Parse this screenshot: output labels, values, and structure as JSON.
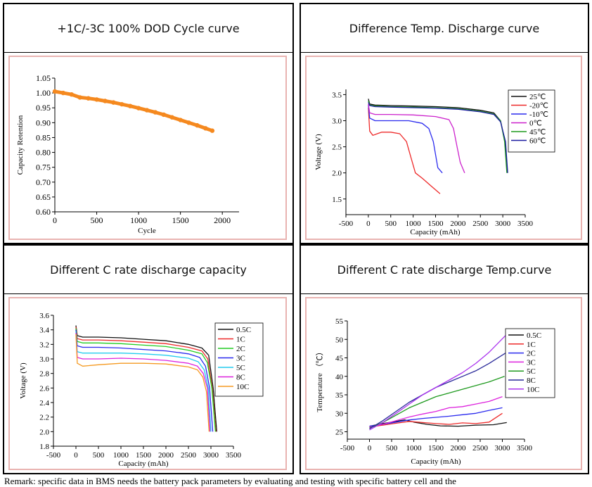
{
  "panels": {
    "cycle": {
      "title": "+1C/-3C 100% DOD Cycle curve"
    },
    "temp_discharge": {
      "title": "Difference Temp. Discharge curve"
    },
    "crate_capacity": {
      "title": "Different C rate discharge capacity"
    },
    "crate_temp": {
      "title": "Different C rate discharge Temp.curve"
    }
  },
  "caption": "Remark: specific data in BMS needs the battery pack parameters by evaluating and testing with specific battery cell and the",
  "chart_data": [
    {
      "id": "cycle",
      "type": "scatter",
      "title": "+1C/-3C 100% DOD Cycle curve",
      "xlabel": "Cycle",
      "ylabel": "Capacity Retention",
      "xlim": [
        0,
        2200
      ],
      "ylim": [
        0.6,
        1.05
      ],
      "xticks": [
        0,
        500,
        1000,
        1500,
        2000
      ],
      "yticks": [
        0.6,
        0.65,
        0.7,
        0.75,
        0.8,
        0.85,
        0.9,
        0.95,
        1.0,
        1.05
      ],
      "ytick_labels": [
        "0.60",
        "0.65",
        "0.70",
        "0.75",
        "0.80",
        "0.85",
        "0.90",
        "0.95",
        "1.00",
        "1.05"
      ],
      "series": [
        {
          "name": "Capacity Retention",
          "color": "#f5891f",
          "x": [
            0,
            100,
            200,
            300,
            400,
            500,
            600,
            700,
            800,
            900,
            1000,
            1100,
            1200,
            1300,
            1400,
            1500,
            1600,
            1700,
            1800,
            1880
          ],
          "y": [
            1.005,
            1.0,
            0.995,
            0.985,
            0.982,
            0.978,
            0.973,
            0.968,
            0.962,
            0.956,
            0.949,
            0.942,
            0.935,
            0.927,
            0.918,
            0.909,
            0.9,
            0.891,
            0.881,
            0.873
          ]
        }
      ]
    },
    {
      "id": "temp_discharge",
      "type": "line",
      "xlabel": "Capacity (mAh)",
      "ylabel": "Voltage (V)",
      "xlim": [
        -500,
        3500
      ],
      "ylim": [
        1.2,
        3.6
      ],
      "xticks": [
        -500,
        0,
        500,
        1000,
        1500,
        2000,
        2500,
        3000,
        3500
      ],
      "yticks": [
        1.5,
        2.0,
        2.5,
        3.0,
        3.5
      ],
      "ytick_labels": [
        "1.5",
        "2.0",
        "2.5",
        "3.0",
        "3.5"
      ],
      "legend": "top-right",
      "series": [
        {
          "name": "25℃",
          "color": "#111111",
          "x": [
            0,
            30,
            150,
            500,
            1000,
            1500,
            2000,
            2500,
            2800,
            2950,
            3050,
            3100
          ],
          "y": [
            3.42,
            3.32,
            3.3,
            3.29,
            3.28,
            3.27,
            3.25,
            3.2,
            3.15,
            3.0,
            2.6,
            2.0
          ]
        },
        {
          "name": "-20℃",
          "color": "#ee2a2a",
          "x": [
            0,
            30,
            100,
            200,
            300,
            500,
            700,
            850,
            950,
            1050,
            1200,
            1400,
            1600
          ],
          "y": [
            3.25,
            2.8,
            2.72,
            2.75,
            2.78,
            2.78,
            2.75,
            2.6,
            2.3,
            2.0,
            1.9,
            1.75,
            1.6
          ]
        },
        {
          "name": "-10℃",
          "color": "#2a2aee",
          "x": [
            0,
            30,
            150,
            500,
            900,
            1200,
            1350,
            1450,
            1500,
            1550,
            1650
          ],
          "y": [
            3.3,
            3.05,
            3.0,
            3.0,
            3.0,
            2.95,
            2.85,
            2.6,
            2.35,
            2.1,
            2.0
          ]
        },
        {
          "name": "0℃",
          "color": "#cc22cc",
          "x": [
            0,
            30,
            150,
            500,
            1000,
            1500,
            1800,
            1900,
            1980,
            2050,
            2150
          ],
          "y": [
            3.32,
            3.15,
            3.12,
            3.12,
            3.11,
            3.08,
            3.02,
            2.85,
            2.5,
            2.2,
            2.0
          ]
        },
        {
          "name": "45℃",
          "color": "#1f9a1f",
          "x": [
            0,
            30,
            150,
            500,
            1000,
            1500,
            2000,
            2500,
            2800,
            2950,
            3040,
            3090
          ],
          "y": [
            3.38,
            3.3,
            3.28,
            3.27,
            3.26,
            3.25,
            3.23,
            3.18,
            3.13,
            3.0,
            2.6,
            2.0
          ]
        },
        {
          "name": "60℃",
          "color": "#1a1aa0",
          "x": [
            0,
            30,
            150,
            500,
            1000,
            1500,
            2000,
            2500,
            2800,
            2950,
            3060,
            3110
          ],
          "y": [
            3.35,
            3.29,
            3.27,
            3.26,
            3.25,
            3.24,
            3.22,
            3.17,
            3.12,
            2.98,
            2.6,
            2.0
          ]
        }
      ]
    },
    {
      "id": "crate_capacity",
      "type": "line",
      "xlabel": "Capacity (mAh)",
      "ylabel": "Voltage (V)",
      "xlim": [
        -500,
        3500
      ],
      "ylim": [
        1.8,
        3.6
      ],
      "xticks": [
        -500,
        0,
        500,
        1000,
        1500,
        2000,
        2500,
        3000,
        3500
      ],
      "yticks": [
        1.8,
        2.0,
        2.2,
        2.4,
        2.6,
        2.8,
        3.0,
        3.2,
        3.4,
        3.6
      ],
      "ytick_labels": [
        "1.8",
        "2.0",
        "2.2",
        "2.4",
        "2.6",
        "2.8",
        "3.0",
        "3.2",
        "3.4",
        "3.6"
      ],
      "legend": "top-right",
      "series": [
        {
          "name": "0.5C",
          "color": "#111111",
          "x": [
            0,
            30,
            150,
            500,
            1000,
            1500,
            2000,
            2500,
            2800,
            2950,
            3050,
            3130
          ],
          "y": [
            3.46,
            3.32,
            3.3,
            3.3,
            3.29,
            3.27,
            3.25,
            3.2,
            3.15,
            3.05,
            2.6,
            2.0
          ]
        },
        {
          "name": "1C",
          "color": "#ee2a2a",
          "x": [
            0,
            30,
            150,
            500,
            1000,
            1500,
            2000,
            2500,
            2800,
            2930,
            3030,
            3110
          ],
          "y": [
            3.44,
            3.28,
            3.26,
            3.26,
            3.25,
            3.23,
            3.21,
            3.16,
            3.11,
            3.0,
            2.6,
            2.0
          ]
        },
        {
          "name": "2C",
          "color": "#22cc22",
          "x": [
            0,
            30,
            150,
            500,
            1000,
            1500,
            2000,
            2500,
            2800,
            2920,
            3020,
            3100
          ],
          "y": [
            3.42,
            3.24,
            3.22,
            3.22,
            3.21,
            3.19,
            3.17,
            3.12,
            3.07,
            2.95,
            2.6,
            2.0
          ]
        },
        {
          "name": "3C",
          "color": "#2a2aee",
          "x": [
            0,
            30,
            150,
            500,
            1000,
            1500,
            2000,
            2500,
            2750,
            2880,
            2970,
            3040
          ],
          "y": [
            3.4,
            3.18,
            3.16,
            3.16,
            3.15,
            3.13,
            3.11,
            3.07,
            3.02,
            2.9,
            2.6,
            2.0
          ]
        },
        {
          "name": "5C",
          "color": "#22ccee",
          "x": [
            0,
            30,
            150,
            500,
            1000,
            1500,
            2000,
            2500,
            2720,
            2850,
            2940,
            3000
          ],
          "y": [
            3.38,
            3.1,
            3.08,
            3.08,
            3.08,
            3.07,
            3.05,
            3.01,
            2.96,
            2.85,
            2.6,
            2.0
          ]
        },
        {
          "name": "8C",
          "color": "#dd22dd",
          "x": [
            0,
            30,
            150,
            500,
            1000,
            1500,
            2000,
            2500,
            2700,
            2830,
            2920,
            2980
          ],
          "y": [
            3.36,
            3.02,
            3.0,
            3.0,
            3.01,
            3.0,
            2.98,
            2.94,
            2.9,
            2.8,
            2.6,
            2.0
          ]
        },
        {
          "name": "10C",
          "color": "#f59a22",
          "x": [
            0,
            30,
            150,
            500,
            1000,
            1500,
            2000,
            2500,
            2700,
            2820,
            2900,
            2960
          ],
          "y": [
            3.34,
            2.94,
            2.9,
            2.92,
            2.94,
            2.94,
            2.93,
            2.89,
            2.85,
            2.75,
            2.55,
            2.0
          ]
        }
      ]
    },
    {
      "id": "crate_temp",
      "type": "line",
      "xlabel": "Capacity (mAh)",
      "ylabel": "Temperature （℃）",
      "xlim": [
        -500,
        3500
      ],
      "ylim": [
        23,
        55
      ],
      "xticks": [
        -500,
        0,
        500,
        1000,
        1500,
        2000,
        2500,
        3000,
        3500
      ],
      "yticks": [
        25,
        30,
        35,
        40,
        45,
        50,
        55
      ],
      "ytick_labels": [
        "25",
        "30",
        "35",
        "40",
        "45",
        "50",
        "55"
      ],
      "legend": "top-right",
      "series": [
        {
          "name": "0.5C",
          "color": "#111111",
          "x": [
            0,
            300,
            600,
            800,
            1000,
            1300,
            1600,
            2000,
            2400,
            2800,
            3100
          ],
          "y": [
            26.5,
            27.2,
            27.8,
            28.2,
            27.6,
            27.0,
            26.6,
            26.5,
            26.8,
            26.9,
            27.5
          ]
        },
        {
          "name": "1C",
          "color": "#ee2a2a",
          "x": [
            0,
            300,
            600,
            900,
            1200,
            1500,
            1800,
            2100,
            2400,
            2700,
            3000
          ],
          "y": [
            26.3,
            26.8,
            27.3,
            27.8,
            27.5,
            27.2,
            27.0,
            27.4,
            27.2,
            27.6,
            30.0
          ]
        },
        {
          "name": "2C",
          "color": "#2a2aee",
          "x": [
            0,
            300,
            600,
            900,
            1200,
            1500,
            1800,
            2100,
            2400,
            2700,
            3000
          ],
          "y": [
            26.5,
            27.0,
            27.6,
            28.2,
            28.6,
            28.9,
            29.2,
            29.6,
            30.0,
            30.8,
            31.5
          ]
        },
        {
          "name": "3C",
          "color": "#dd22dd",
          "x": [
            0,
            300,
            600,
            900,
            1200,
            1500,
            1800,
            2100,
            2400,
            2700,
            3000
          ],
          "y": [
            26.2,
            27.0,
            28.0,
            29.0,
            29.8,
            30.5,
            31.5,
            31.8,
            32.5,
            33.2,
            34.5
          ]
        },
        {
          "name": "5C",
          "color": "#1f9a1f",
          "x": [
            0,
            300,
            600,
            900,
            1200,
            1500,
            1800,
            2100,
            2400,
            2700,
            3050
          ],
          "y": [
            26.0,
            27.5,
            29.5,
            31.5,
            33.0,
            34.5,
            35.5,
            36.5,
            37.5,
            38.5,
            40.0
          ]
        },
        {
          "name": "8C",
          "color": "#2a2a9a",
          "x": [
            0,
            300,
            600,
            900,
            1200,
            1500,
            1800,
            2100,
            2400,
            2700,
            3100
          ],
          "y": [
            25.8,
            28.0,
            30.5,
            33.0,
            35.0,
            37.0,
            38.5,
            40.0,
            41.5,
            43.5,
            46.5
          ]
        },
        {
          "name": "10C",
          "color": "#aa33ee",
          "x": [
            0,
            300,
            600,
            900,
            1200,
            1500,
            1800,
            2100,
            2400,
            2700,
            3150
          ],
          "y": [
            25.5,
            27.5,
            30.0,
            32.5,
            35.0,
            37.0,
            39.0,
            41.0,
            43.5,
            46.5,
            52.0
          ]
        }
      ]
    }
  ]
}
